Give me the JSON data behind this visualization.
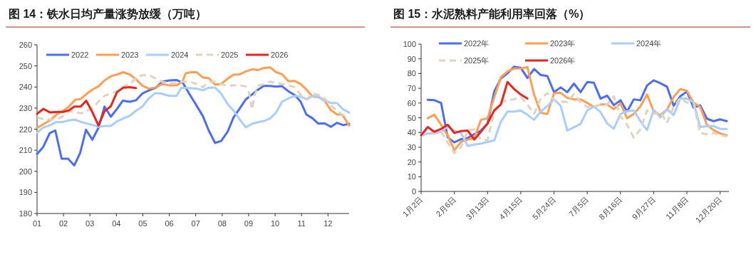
{
  "chart_data": [
    {
      "type": "line",
      "title": "图 14：铁水日均产量涨势放缓（万吨）",
      "xlim": [
        1,
        12.8
      ],
      "xticks": [
        {
          "value": 1,
          "label": "01"
        },
        {
          "value": 2,
          "label": "02"
        },
        {
          "value": 3,
          "label": "03"
        },
        {
          "value": 4,
          "label": "04"
        },
        {
          "value": 5,
          "label": "05"
        },
        {
          "value": 6,
          "label": "06"
        },
        {
          "value": 7,
          "label": "07"
        },
        {
          "value": 8,
          "label": "08"
        },
        {
          "value": 9,
          "label": "09"
        },
        {
          "value": 10,
          "label": "10"
        },
        {
          "value": 11,
          "label": "11"
        },
        {
          "value": 12,
          "label": "12"
        }
      ],
      "ylim": [
        180,
        260
      ],
      "yticks": [
        180,
        190,
        200,
        210,
        220,
        230,
        240,
        250,
        260
      ],
      "legend": "top",
      "line_style": "solid",
      "series": [
        {
          "name": "2022",
          "color": "#4a6cf7",
          "x": [
            1.0,
            1.23,
            1.48,
            1.69,
            1.93,
            2.17,
            2.41,
            2.63,
            2.85,
            3.09,
            3.32,
            3.55,
            3.79,
            4.02,
            4.24,
            4.51,
            4.74,
            4.98,
            5.23,
            5.5,
            5.73,
            6.0,
            6.27,
            6.51,
            6.78,
            7.0,
            7.27,
            7.49,
            7.73,
            7.96,
            8.21,
            8.43,
            8.65,
            8.89,
            9.14,
            9.34,
            9.57,
            9.81,
            10.04,
            10.26,
            10.5,
            10.75,
            10.97,
            11.18,
            11.42,
            11.64,
            11.87,
            12.11,
            12.34,
            12.58,
            12.8
          ],
          "values": [
            208.2,
            211.5,
            218.1,
            219.4,
            206,
            206,
            202.8,
            208.7,
            219.7,
            215,
            220.6,
            230.7,
            225.9,
            229.6,
            233.5,
            233,
            233.7,
            236.9,
            238.4,
            239.7,
            242.5,
            243.1,
            243.3,
            242,
            236.3,
            231.8,
            226.2,
            219.4,
            213.5,
            214.4,
            218.9,
            225.6,
            229.6,
            234.1,
            236.6,
            238.6,
            240.5,
            240.5,
            240.2,
            240.4,
            238,
            236.1,
            233,
            227,
            225.1,
            222.6,
            222.8,
            221.1,
            223,
            221.9,
            222.5
          ]
        },
        {
          "name": "2023",
          "color": "#ff9e50",
          "x": [
            1.0,
            1.23,
            1.5,
            1.77,
            1.99,
            2.22,
            2.44,
            2.65,
            2.86,
            3.1,
            3.32,
            3.55,
            3.79,
            4.02,
            4.26,
            4.51,
            4.74,
            4.98,
            5.23,
            5.46,
            5.73,
            6.0,
            6.27,
            6.5,
            6.62,
            6.82,
            7.04,
            7.27,
            7.49,
            7.73,
            7.96,
            8.21,
            8.43,
            8.65,
            8.89,
            9.14,
            9.34,
            9.57,
            9.81,
            10.04,
            10.26,
            10.5,
            10.73,
            10.97,
            11.2,
            11.42,
            11.64,
            11.87,
            12.11,
            12.34,
            12.55,
            12.8
          ],
          "values": [
            220.6,
            222.3,
            224.2,
            227.3,
            228.7,
            230.9,
            233.9,
            234.3,
            236.6,
            238.8,
            240.3,
            243.1,
            245.1,
            245.9,
            247,
            245.9,
            243.7,
            240.6,
            239.2,
            239.7,
            241.4,
            240.8,
            240.8,
            242.5,
            246.5,
            247,
            247,
            244.5,
            244.2,
            241.1,
            241.4,
            244,
            245.9,
            245.9,
            247.4,
            248.4,
            248,
            249,
            249.3,
            247,
            246.1,
            242.8,
            242.9,
            241.4,
            238.6,
            235.5,
            235.2,
            233.5,
            229,
            227,
            226.8,
            221.7
          ]
        },
        {
          "name": "2024",
          "color": "#a9cdff",
          "x": [
            1.0,
            1.23,
            1.5,
            1.72,
            1.96,
            2.22,
            2.44,
            2.67,
            2.89,
            3.12,
            3.34,
            3.57,
            3.79,
            4.02,
            4.27,
            4.51,
            4.74,
            4.98,
            5.23,
            5.46,
            5.73,
            6.0,
            6.27,
            6.46,
            6.78,
            7.04,
            7.27,
            7.49,
            7.73,
            7.96,
            8.21,
            8.45,
            8.65,
            8.89,
            9.14,
            9.37,
            9.59,
            9.81,
            10.04,
            10.26,
            10.5,
            10.75,
            10.97,
            11.2,
            11.42,
            11.64,
            11.89,
            12.11,
            12.34,
            12.55,
            12.8
          ],
          "values": [
            218.3,
            220.8,
            221.9,
            223.4,
            223.4,
            224.2,
            224.5,
            223.4,
            222.6,
            221.9,
            221.1,
            221.5,
            221.5,
            223.7,
            225.1,
            226.4,
            228.7,
            230.7,
            234.6,
            237.1,
            236.8,
            235.8,
            235.8,
            239.7,
            239.5,
            239.2,
            238.4,
            239.7,
            239.7,
            236.9,
            231.8,
            228.5,
            224.8,
            220.9,
            222.6,
            223.4,
            223.9,
            225.1,
            227.9,
            233,
            234.6,
            235.8,
            235.5,
            234.1,
            235.8,
            235.5,
            233.5,
            232.4,
            232.4,
            229.6,
            227.9
          ]
        },
        {
          "name": "2025",
          "color": "#ddd3bf",
          "line_style": "dashed",
          "x": [
            1.0,
            1.23,
            1.5,
            1.77,
            1.99,
            2.22,
            2.44,
            2.65,
            2.86,
            3.1,
            3.32,
            3.55,
            3.79,
            4.02,
            4.27,
            4.51,
            4.74,
            4.98,
            5.23,
            5.46,
            5.73,
            6.0,
            6.27,
            6.46,
            6.78,
            7.04,
            7.27,
            7.49,
            7.73,
            7.96,
            8.21,
            8.45,
            8.65,
            8.89,
            9.01,
            9.13,
            9.23,
            9.37,
            9.59,
            9.81,
            10.04,
            10.26,
            10.5,
            10.73,
            10.97,
            11.2,
            11.42,
            11.64,
            11.87,
            12.11,
            12.34,
            12.55,
            12.71
          ],
          "values": [
            225.6,
            224.8,
            224.5,
            224.8,
            226.2,
            228.5,
            228.2,
            227.5,
            228.5,
            230.1,
            233,
            235.8,
            236.9,
            238,
            240.3,
            241.4,
            244.2,
            245.6,
            245.6,
            244.2,
            242.5,
            241.7,
            241.9,
            242.5,
            242.5,
            241.4,
            239.9,
            242.5,
            242.5,
            241.4,
            240.6,
            240.8,
            240.8,
            240.3,
            237.5,
            229.4,
            236.3,
            240.6,
            241.4,
            242.5,
            241.9,
            241.4,
            240.8,
            239.9,
            236.3,
            234.3,
            236.9,
            236.3,
            234.6,
            231.3,
            228.7,
            226.8,
            226.4
          ]
        },
        {
          "name": "2026",
          "color": "#e8241d",
          "x": [
            1.0,
            1.24,
            1.5,
            1.77,
            1.99,
            2.22,
            2.41,
            2.65,
            2.86,
            3.1,
            3.32,
            3.55,
            3.79,
            4.02,
            4.26,
            4.51,
            4.74
          ],
          "values": [
            227.3,
            229.6,
            227.9,
            228.2,
            228.2,
            229,
            230.7,
            230.7,
            233.5,
            227.9,
            221.7,
            228.5,
            230.9,
            237.5,
            239.7,
            239.9,
            239.5
          ]
        }
      ]
    },
    {
      "type": "line",
      "title": "图 15：水泥熟料产能利用率回落（%）",
      "categories": [
        "1月2日",
        null,
        null,
        null,
        null,
        "2月6日",
        null,
        null,
        null,
        null,
        "3月13日",
        null,
        null,
        null,
        null,
        "4月15日",
        null,
        null,
        null,
        null,
        "5月24日",
        null,
        null,
        null,
        null,
        "7月5日",
        null,
        null,
        null,
        null,
        "8月16日",
        null,
        null,
        null,
        null,
        "9月27日",
        null,
        null,
        null,
        null,
        "11月8日",
        null,
        null,
        null,
        null,
        "12月20日",
        null
      ],
      "ylim": [
        0,
        100
      ],
      "yticks": [
        0,
        10,
        20,
        30,
        40,
        50,
        60,
        70,
        80,
        90,
        100
      ],
      "legend": "top",
      "line_style": "solid",
      "series": [
        {
          "name": "2022年",
          "color": "#4a6cf7",
          "values": [
            null,
            62.2,
            61.9,
            60.1,
            36.8,
            33.3,
            35.4,
            36.2,
            38.9,
            41.3,
            46.1,
            67.8,
            76.7,
            80.2,
            84.7,
            83.9,
            77,
            83.1,
            79.1,
            78.3,
            67.4,
            70.6,
            67.4,
            73.2,
            67.4,
            74.3,
            73.8,
            63,
            65,
            58.5,
            61.9,
            54.2,
            62.5,
            61.9,
            71.9,
            75.4,
            73.5,
            71.1,
            58.2,
            64.6,
            67.8,
            56.9,
            58.5,
            49.4,
            47.7,
            48.9,
            47.7
          ]
        },
        {
          "name": "2023年",
          "color": "#ff9e50",
          "values": [
            null,
            49.7,
            52.1,
            45.3,
            38.1,
            28,
            33.6,
            35.2,
            36.2,
            48.6,
            49.7,
            63.8,
            77.5,
            81.5,
            83.4,
            83.4,
            84.4,
            65.8,
            53.4,
            52.6,
            66.7,
            67,
            63.5,
            62.5,
            62.5,
            60.1,
            57.4,
            59,
            59,
            55.8,
            59.8,
            49.7,
            52.6,
            57.7,
            65.8,
            54.2,
            51.8,
            55.5,
            64.1,
            69.5,
            68.3,
            60.3,
            57.4,
            45.3,
            41.6,
            39.4,
            38.1
          ]
        },
        {
          "name": "2024年",
          "color": "#a9cdff",
          "values": [
            37.6,
            39.4,
            39.4,
            40.5,
            44.2,
            41.3,
            39.7,
            30.9,
            31.8,
            32.5,
            33.6,
            34.6,
            47.3,
            54.2,
            54.2,
            55,
            52,
            48.6,
            54.2,
            58,
            62.5,
            58.2,
            41.3,
            43.5,
            45.8,
            55,
            57.7,
            53.9,
            46.1,
            42.6,
            52.6,
            54.5,
            55,
            47.7,
            41.6,
            55.5,
            50.2,
            55.8,
            51.8,
            63,
            63,
            60.6,
            43.7,
            44.2,
            44.5,
            42.4,
            42.4
          ]
        },
        {
          "name": "2025年",
          "color": "#ddd3bf",
          "line_style": "dashed",
          "values": [
            38.9,
            41.3,
            39.4,
            40.5,
            33.3,
            26,
            30.1,
            41.3,
            42.1,
            35.2,
            34.9,
            54.2,
            60.6,
            61.9,
            62.5,
            64.1,
            59,
            52.6,
            63,
            66.7,
            61.9,
            61.2,
            60.6,
            66.2,
            60.6,
            57.4,
            57.4,
            59,
            59,
            64.6,
            51,
            45.3,
            36.5,
            42.1,
            55,
            52.6,
            53.9,
            46.5,
            57.4,
            63.5,
            60.3,
            59.8,
            39.7,
            38.9,
            39.7,
            38.4,
            37.3
          ]
        },
        {
          "name": "2026年",
          "color": "#e8241d",
          "values": [
            38.1,
            43.7,
            40.5,
            42.4,
            45.3,
            39.7,
            41,
            41.3,
            35.2,
            40.5,
            46.1,
            55,
            59,
            74.3,
            69.5,
            65.8,
            63,
            null,
            null,
            null,
            null,
            null,
            null,
            null,
            null,
            null,
            null,
            null,
            null,
            null,
            null,
            null,
            null,
            null,
            null,
            null,
            null,
            null,
            null,
            null,
            null,
            null,
            null,
            null,
            null,
            null,
            null
          ]
        }
      ]
    }
  ]
}
